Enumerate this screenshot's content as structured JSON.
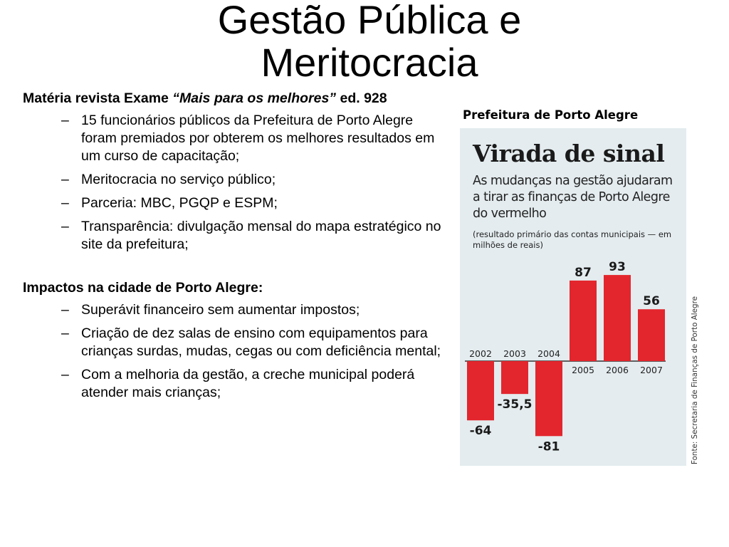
{
  "slide": {
    "title_line1": "Gestão Pública e",
    "title_line2": "Meritocracia"
  },
  "content": {
    "section1": {
      "label": "Matéria revista Exame ",
      "label_italic": "“Mais para os melhores”",
      "label_tail": " ed. 928",
      "items": [
        "15 funcionários públicos da Prefeitura de Porto Alegre foram premiados por obterem os melhores resultados em um curso de capacitação;",
        "Meritocracia no serviço público;",
        "Parceria: MBC, PGQP e ESPM;",
        "Transparência: divulgação mensal do mapa estratégico no site da prefeitura;"
      ]
    },
    "section2": {
      "label": "Impactos na cidade de Porto Alegre:",
      "items": [
        "Superávit financeiro sem aumentar impostos;",
        "Criação de dez salas de ensino com equipamentos para crianças surdas, mudas, cegas ou com deficiência mental;",
        "Com a melhoria da gestão, a creche municipal poderá atender mais crianças;"
      ]
    },
    "bullet_glyph": "–"
  },
  "chart_caption": "Prefeitura de Porto Alegre",
  "chart_data": {
    "type": "bar",
    "title": "Virada de sinal",
    "subtitle": "As mudanças na gestão ajudaram a tirar as finanças de Porto Alegre do vermelho",
    "note": "(resultado primário das contas municipais — em milhões de reais)",
    "categories": [
      "2002",
      "2003",
      "2004",
      "2005",
      "2006",
      "2007"
    ],
    "values": [
      -64,
      -35.5,
      -81,
      87,
      93,
      56
    ],
    "value_labels": [
      "-64",
      "-35,5",
      "-81",
      "87",
      "93",
      "56"
    ],
    "source": "Fonte: Secretaria de Finanças de Porto Alegre",
    "bar_color": "#e3262d",
    "panel_color": "#e4ecef",
    "grid": false,
    "legend": "none"
  }
}
